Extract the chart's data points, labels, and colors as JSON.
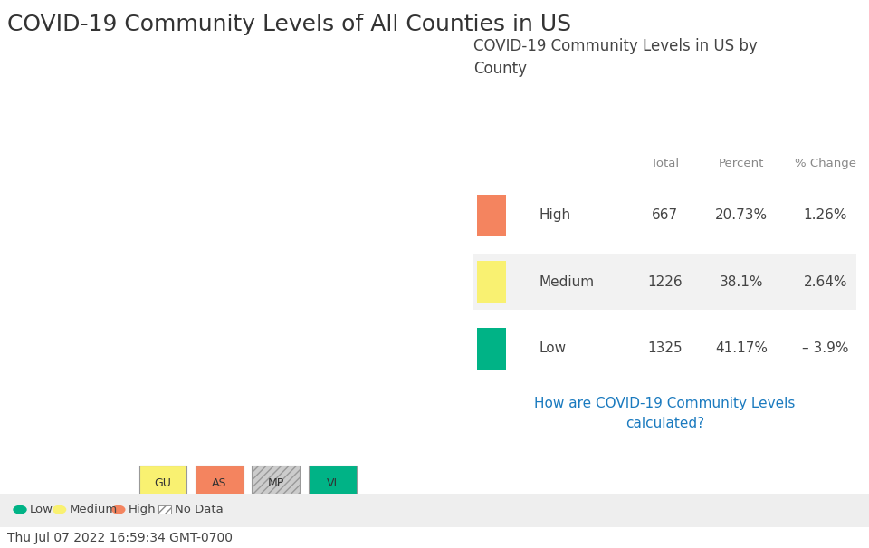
{
  "title": "COVID-19 Community Levels of All Counties in US",
  "title_fontsize": 18,
  "title_color": "#333333",
  "background_color": "#ffffff",
  "panel_title": "COVID-19 Community Levels in US by\nCounty",
  "panel_title_fontsize": 12,
  "table_headers": [
    "",
    "Total",
    "Percent",
    "% Change"
  ],
  "table_rows": [
    {
      "label": "High",
      "color": "#F4845F",
      "total": "667",
      "percent": "20.73%",
      "change": "1.26%"
    },
    {
      "label": "Medium",
      "color": "#F9F171",
      "total": "1226",
      "percent": "38.1%",
      "change": "2.64%"
    },
    {
      "label": "Low",
      "color": "#00B386",
      "total": "1325",
      "percent": "41.17%",
      "change": "– 3.9%"
    }
  ],
  "link_text": "How are COVID-19 Community Levels\ncalculated?",
  "link_color": "#1a7abf",
  "footer_legend": [
    {
      "label": "Low",
      "color": "#00B386",
      "type": "circle"
    },
    {
      "label": "Medium",
      "color": "#F9F171",
      "type": "circle"
    },
    {
      "label": "High",
      "color": "#F4845F",
      "type": "circle"
    },
    {
      "label": "No Data",
      "color": "#aaaaaa",
      "type": "hatch"
    }
  ],
  "footer_bg_color": "#eeeeee",
  "timestamp": "Thu Jul 07 2022 16:59:34 GMT-0700",
  "timestamp_fontsize": 10,
  "territory_boxes": [
    {
      "label": "GU",
      "color": "#F9F171",
      "hatch": ""
    },
    {
      "label": "AS",
      "color": "#F4845F",
      "hatch": ""
    },
    {
      "label": "MP",
      "color": "#cccccc",
      "hatch": "////"
    },
    {
      "label": "VI",
      "color": "#00B386",
      "hatch": ""
    }
  ],
  "row_alt_color": "#f2f2f2",
  "text_color": "#444444",
  "header_color": "#888888"
}
